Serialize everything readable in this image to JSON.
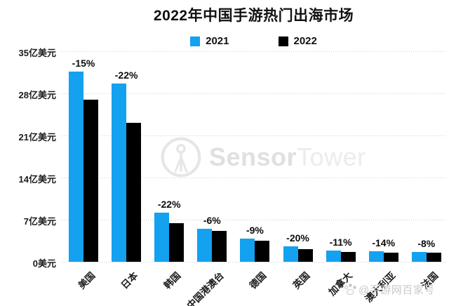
{
  "title": "2022年中国手游热门出海市场",
  "legend": {
    "items": [
      {
        "label": "2021",
        "color": "#14a1f0"
      },
      {
        "label": "2022",
        "color": "#000000"
      }
    ]
  },
  "colors": {
    "bar_2021": "#14a1f0",
    "bar_2022": "#000000",
    "gridline": "#cfcfcf",
    "watermark_gray": "#e6e6e6",
    "byline_gray": "#c9c9c9"
  },
  "icons": {
    "logo": "sensor-tower-antenna-icon",
    "paw": "baidu-paw-icon"
  },
  "watermark": {
    "brand_bold": "Sensor",
    "brand_light": "Tower",
    "byline": "@手游网百家号"
  },
  "chart_data": {
    "type": "bar",
    "title": "2022年中国手游热门出海市场",
    "unit": "亿美元",
    "categories": [
      "美国",
      "日本",
      "韩国",
      "中国港澳台",
      "德国",
      "英国",
      "加拿大",
      "澳大利亚",
      "法国"
    ],
    "series": [
      {
        "name": "2021",
        "color": "#14a1f0",
        "values": [
          31.6,
          29.6,
          8.2,
          5.5,
          3.85,
          2.55,
          1.85,
          1.8,
          1.65
        ]
      },
      {
        "name": "2022",
        "color": "#000000",
        "values": [
          26.9,
          23.1,
          6.4,
          5.15,
          3.5,
          2.05,
          1.65,
          1.55,
          1.5
        ]
      }
    ],
    "change_labels": [
      "-15%",
      "-22%",
      "-22%",
      "-6%",
      "-9%",
      "-20%",
      "-11%",
      "-14%",
      "-8%"
    ],
    "y_ticks": [
      {
        "value": 0,
        "label": "0美元"
      },
      {
        "value": 7,
        "label": "7亿美元"
      },
      {
        "value": 14,
        "label": "14亿美元"
      },
      {
        "value": 21,
        "label": "21亿美元"
      },
      {
        "value": 28,
        "label": "28亿美元"
      },
      {
        "value": 35,
        "label": "35亿美元"
      }
    ],
    "ylim": [
      0,
      35
    ],
    "grid": "horizontal-dotted",
    "legend_position": "top-center"
  }
}
